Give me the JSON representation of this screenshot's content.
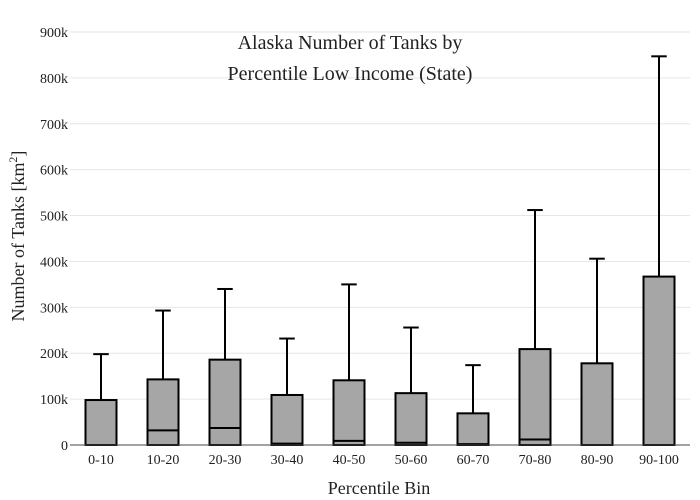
{
  "chart_data": {
    "type": "box",
    "title_lines": [
      "Alaska Number of Tanks by",
      "Percentile Low Income (State)"
    ],
    "xlabel": "Percentile Bin",
    "ylabel": "Number of Tanks  [km",
    "ylabel_sup": "2",
    "ylabel_close": "]",
    "ylim": [
      0,
      900000
    ],
    "y_ticks": [
      0,
      100000,
      200000,
      300000,
      400000,
      500000,
      600000,
      700000,
      800000,
      900000
    ],
    "y_tick_labels": [
      "0",
      "100k",
      "200k",
      "300k",
      "400k",
      "500k",
      "600k",
      "700k",
      "800k",
      "900k"
    ],
    "grid": true,
    "categories": [
      "0-10",
      "10-20",
      "20-30",
      "30-40",
      "40-50",
      "50-60",
      "60-70",
      "70-80",
      "80-90",
      "90-100"
    ],
    "boxes": [
      {
        "lower": 0,
        "median": 0,
        "q3": 98000,
        "upper": 198000
      },
      {
        "lower": 0,
        "median": 32000,
        "q3": 143000,
        "upper": 293000
      },
      {
        "lower": 0,
        "median": 37000,
        "q3": 186000,
        "upper": 340000
      },
      {
        "lower": 0,
        "median": 3000,
        "q3": 109000,
        "upper": 232000
      },
      {
        "lower": 0,
        "median": 9000,
        "q3": 141000,
        "upper": 350000
      },
      {
        "lower": 0,
        "median": 5000,
        "q3": 113000,
        "upper": 256000
      },
      {
        "lower": 0,
        "median": 2000,
        "q3": 69000,
        "upper": 174000
      },
      {
        "lower": 0,
        "median": 12000,
        "q3": 209000,
        "upper": 512000
      },
      {
        "lower": 0,
        "median": 0,
        "q3": 178000,
        "upper": 406000
      },
      {
        "lower": 0,
        "median": 0,
        "q3": 367000,
        "upper": 847000
      }
    ],
    "box_color": "#a6a6a6",
    "edge_color": "#000000"
  }
}
